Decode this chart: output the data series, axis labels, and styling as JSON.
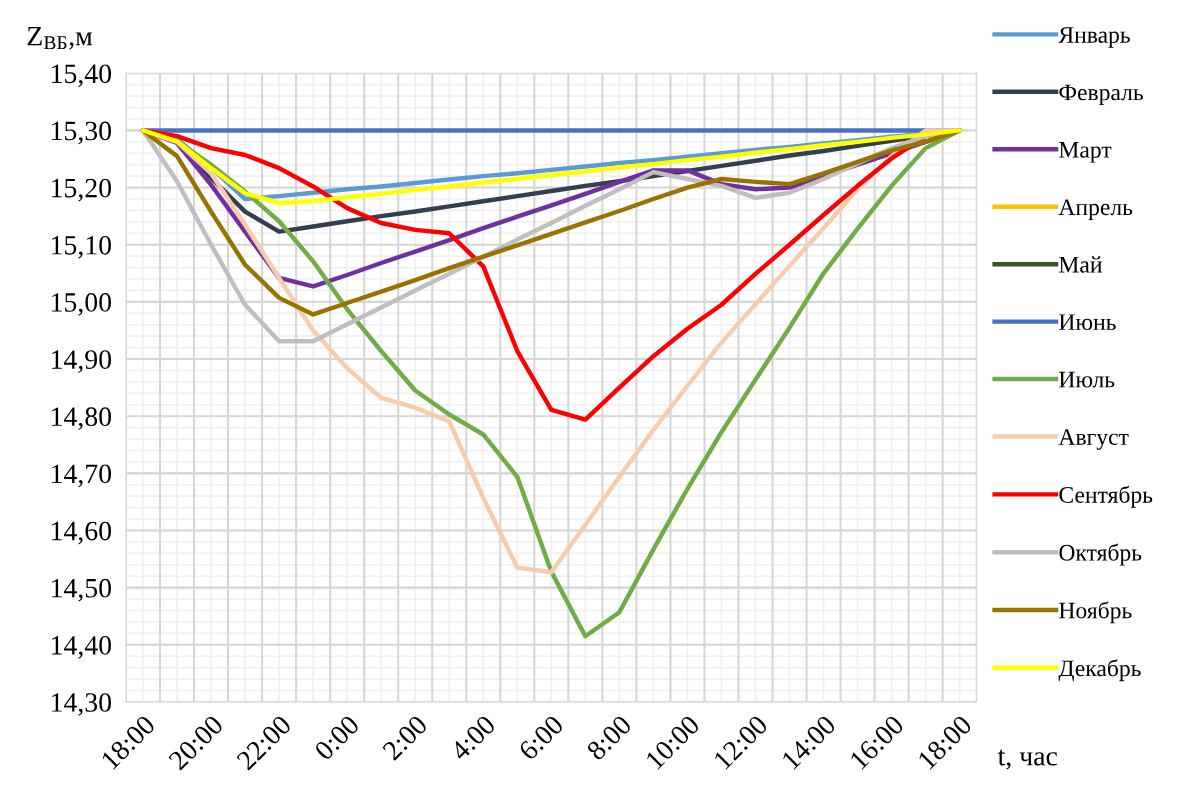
{
  "chart_data": {
    "type": "line",
    "ylabel": "Z$_{ВБ}$,м",
    "xlabel": "t, час",
    "categories": [
      "18:00",
      null,
      "20:00",
      null,
      "22:00",
      null,
      "0:00",
      null,
      "2:00",
      null,
      "4:00",
      null,
      "6:00",
      null,
      "8:00",
      null,
      "10:00",
      null,
      "12:00",
      null,
      "14:00",
      null,
      "16:00",
      null,
      "18:00"
    ],
    "ylim": [
      14.3,
      15.4
    ],
    "yticks": [
      {
        "value": 14.3,
        "label": "14,30"
      },
      {
        "value": 14.4,
        "label": "14,40"
      },
      {
        "value": 14.5,
        "label": "14,50"
      },
      {
        "value": 14.6,
        "label": "14,60"
      },
      {
        "value": 14.7,
        "label": "14,70"
      },
      {
        "value": 14.8,
        "label": "14,80"
      },
      {
        "value": 14.9,
        "label": "14,90"
      },
      {
        "value": 15.0,
        "label": "15,00"
      },
      {
        "value": 15.1,
        "label": "15,10"
      },
      {
        "value": 15.2,
        "label": "15,20"
      },
      {
        "value": 15.3,
        "label": "15,30"
      },
      {
        "value": 15.4,
        "label": "15,40"
      }
    ],
    "grid": true,
    "legend": "right",
    "marker": "none",
    "line_style": "solid",
    "series": [
      {
        "name": "Январь",
        "color": "#5b9bd5",
        "values": [
          15.3,
          15.285,
          15.235,
          15.18,
          15.185,
          15.191,
          15.197,
          15.202,
          15.208,
          15.214,
          15.22,
          15.225,
          15.231,
          15.237,
          15.243,
          15.248,
          15.254,
          15.26,
          15.266,
          15.271,
          15.277,
          15.283,
          15.289,
          15.294,
          15.3
        ]
      },
      {
        "name": "Февраль",
        "color": "#333f50",
        "values": [
          15.3,
          15.281,
          15.217,
          15.158,
          15.123,
          15.132,
          15.141,
          15.15,
          15.158,
          15.167,
          15.176,
          15.185,
          15.194,
          15.203,
          15.211,
          15.22,
          15.229,
          15.238,
          15.247,
          15.256,
          15.264,
          15.273,
          15.282,
          15.291,
          15.3
        ]
      },
      {
        "name": "Март",
        "color": "#7030a0",
        "values": [
          15.3,
          15.278,
          15.205,
          15.123,
          15.042,
          15.027,
          15.047,
          15.068,
          15.088,
          15.108,
          15.129,
          15.149,
          15.169,
          15.189,
          15.21,
          15.23,
          15.23,
          15.206,
          15.197,
          15.2,
          15.22,
          15.24,
          15.26,
          15.28,
          15.3
        ]
      },
      {
        "name": "Апрель",
        "color": "#ffc000",
        "values": [
          null,
          null,
          null,
          null,
          null,
          null,
          null,
          null,
          null,
          null,
          null,
          null,
          null,
          null,
          null,
          null,
          null,
          null,
          null,
          null,
          null,
          null,
          null,
          null,
          null
        ]
      },
      {
        "name": "Май",
        "color": "#375623",
        "values": [
          null,
          null,
          null,
          null,
          null,
          null,
          null,
          null,
          null,
          null,
          null,
          null,
          null,
          null,
          null,
          null,
          null,
          null,
          null,
          null,
          null,
          null,
          null,
          null,
          null
        ]
      },
      {
        "name": "Июнь",
        "color": "#4472c4",
        "values": [
          15.3,
          15.3,
          15.3,
          15.3,
          15.3,
          15.3,
          15.3,
          15.3,
          15.3,
          15.3,
          15.3,
          15.3,
          15.3,
          15.3,
          15.3,
          15.3,
          15.3,
          15.3,
          15.3,
          15.3,
          15.3,
          15.3,
          15.3,
          15.3,
          15.3
        ]
      },
      {
        "name": "Июль",
        "color": "#70ad47",
        "values": [
          15.3,
          15.281,
          15.24,
          15.193,
          15.141,
          15.071,
          14.987,
          14.914,
          14.845,
          14.803,
          14.768,
          14.694,
          14.528,
          14.415,
          14.457,
          14.567,
          14.673,
          14.772,
          14.864,
          14.955,
          15.05,
          15.128,
          15.203,
          15.269,
          15.3
        ]
      },
      {
        "name": "Август",
        "color": "#f8cbad",
        "values": [
          15.3,
          15.28,
          15.225,
          15.135,
          15.042,
          14.95,
          14.884,
          14.832,
          14.815,
          14.791,
          14.657,
          14.535,
          14.527,
          14.61,
          14.694,
          14.776,
          14.853,
          14.929,
          14.996,
          15.063,
          15.129,
          15.197,
          15.255,
          15.3,
          15.3
        ]
      },
      {
        "name": "Сентябрь",
        "color": "#ff0000",
        "values": [
          15.3,
          15.29,
          15.269,
          15.257,
          15.234,
          15.202,
          15.164,
          15.138,
          15.126,
          15.12,
          15.062,
          14.914,
          14.811,
          14.794,
          14.85,
          14.905,
          14.953,
          14.995,
          15.049,
          15.1,
          15.152,
          15.203,
          15.251,
          15.29,
          15.3
        ]
      },
      {
        "name": "Октябрь",
        "color": "#bfbfbf",
        "values": [
          15.3,
          15.211,
          15.1,
          14.995,
          14.931,
          14.931,
          14.961,
          14.99,
          15.02,
          15.049,
          15.079,
          15.109,
          15.138,
          15.168,
          15.197,
          15.227,
          15.215,
          15.203,
          15.182,
          15.191,
          15.215,
          15.242,
          15.269,
          15.29,
          15.3
        ]
      },
      {
        "name": "Ноябрь",
        "color": "#997300",
        "values": [
          15.3,
          15.255,
          15.158,
          15.065,
          15.007,
          14.978,
          14.998,
          15.018,
          15.038,
          15.059,
          15.079,
          15.099,
          15.119,
          15.139,
          15.159,
          15.18,
          15.2,
          15.215,
          15.21,
          15.206,
          15.225,
          15.245,
          15.265,
          15.28,
          15.3
        ]
      },
      {
        "name": "Декабрь",
        "color": "#ffff00",
        "values": [
          15.3,
          15.281,
          15.234,
          15.19,
          15.173,
          15.176,
          15.183,
          15.189,
          15.196,
          15.202,
          15.209,
          15.215,
          15.222,
          15.228,
          15.235,
          15.241,
          15.248,
          15.254,
          15.261,
          15.267,
          15.274,
          15.28,
          15.287,
          15.293,
          15.3
        ]
      }
    ]
  }
}
